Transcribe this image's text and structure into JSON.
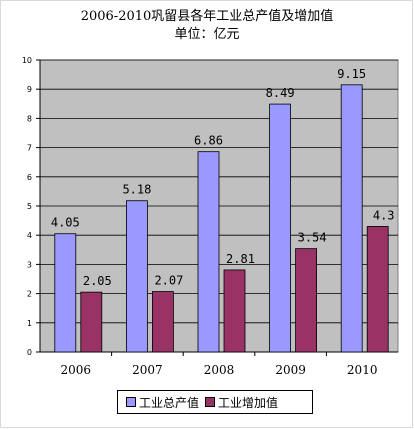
{
  "chart_data": {
    "type": "bar",
    "title": "2006-2010巩留县各年工业总产值及增加值",
    "subtitle": "单位：亿元",
    "categories": [
      "2006",
      "2007",
      "2008",
      "2009",
      "2010"
    ],
    "series": [
      {
        "name": "工业总产值",
        "values": [
          4.05,
          5.18,
          6.86,
          8.49,
          9.15
        ],
        "labels": [
          "4.05",
          "5.18",
          "6.86",
          "8.49",
          "9.15"
        ],
        "color": "#9999ff"
      },
      {
        "name": "工业增加值",
        "values": [
          2.05,
          2.07,
          2.81,
          3.54,
          4.3
        ],
        "labels": [
          "2.05",
          "2.07",
          "2.81",
          "3.54",
          "4.3"
        ],
        "color": "#993366"
      }
    ],
    "yticks": [
      "0",
      "1",
      "2",
      "3",
      "4",
      "5",
      "6",
      "7",
      "8",
      "9",
      "10"
    ],
    "ylim": [
      0,
      10
    ],
    "grid": true,
    "plot_background": "#c0c0c0",
    "legend_position": "bottom"
  }
}
